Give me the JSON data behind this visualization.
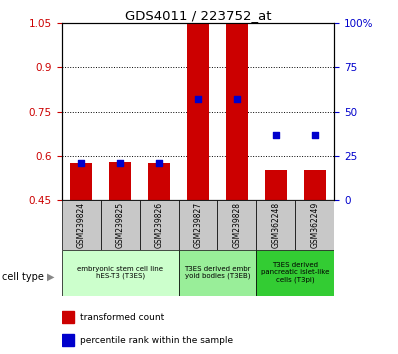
{
  "title": "GDS4011 / 223752_at",
  "samples": [
    "GSM239824",
    "GSM239825",
    "GSM239826",
    "GSM239827",
    "GSM239828",
    "GSM362248",
    "GSM362249"
  ],
  "transformed_count": [
    0.575,
    0.578,
    0.575,
    1.048,
    1.048,
    0.553,
    0.553
  ],
  "percentile_rank_pct": [
    21,
    21,
    21,
    57,
    57,
    37,
    37
  ],
  "ylim_left": [
    0.45,
    1.05
  ],
  "ylim_right": [
    0,
    100
  ],
  "yticks_left": [
    0.45,
    0.6,
    0.75,
    0.9,
    1.05
  ],
  "yticks_right": [
    0,
    25,
    50,
    75,
    100
  ],
  "ytick_labels_right": [
    "0",
    "25",
    "50",
    "75",
    "100%"
  ],
  "ytick_labels_left": [
    "0.45",
    "0.6",
    "0.75",
    "0.9",
    "1.05"
  ],
  "bar_color": "#cc0000",
  "dot_color": "#0000cc",
  "cell_type_groups": [
    {
      "label": "embryonic stem cell line\nhES-T3 (T3ES)",
      "start": 0,
      "end": 3,
      "color": "#ccffcc"
    },
    {
      "label": "T3ES derived embr\nyoid bodies (T3EB)",
      "start": 3,
      "end": 5,
      "color": "#99ee99"
    },
    {
      "label": "T3ES derived\npancreatic islet-like\ncells (T3pi)",
      "start": 5,
      "end": 7,
      "color": "#33cc33"
    }
  ],
  "legend_items": [
    {
      "label": "transformed count",
      "color": "#cc0000"
    },
    {
      "label": "percentile rank within the sample",
      "color": "#0000cc"
    }
  ],
  "cell_type_label": "cell type",
  "tick_label_color_left": "#cc0000",
  "tick_label_color_right": "#0000cc",
  "fig_width": 3.98,
  "fig_height": 3.54,
  "dpi": 100
}
